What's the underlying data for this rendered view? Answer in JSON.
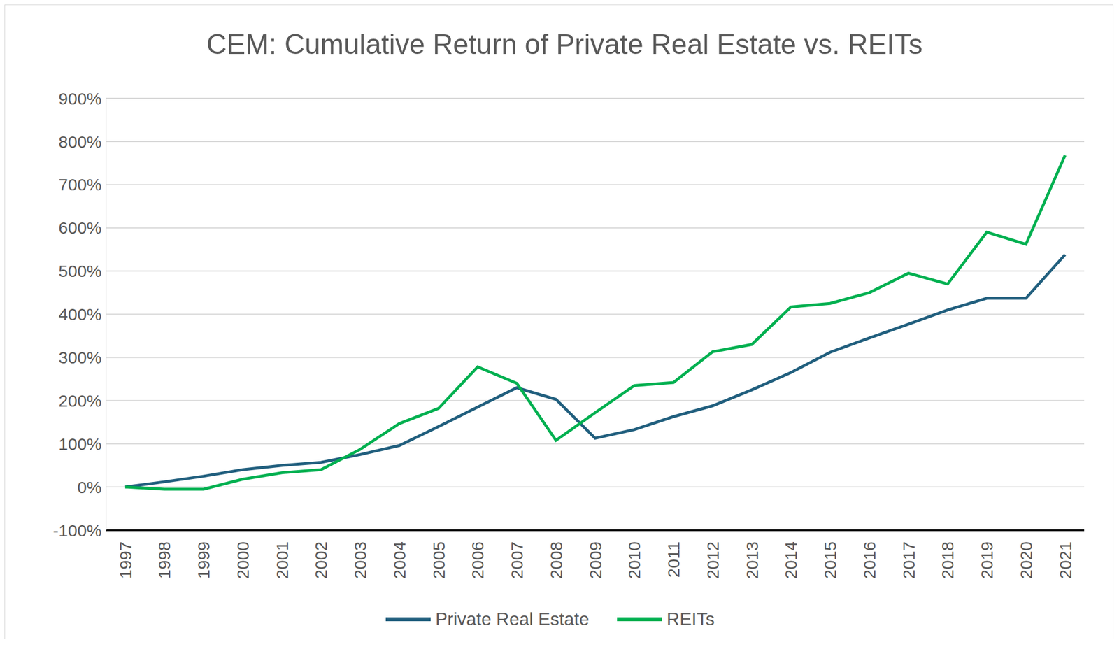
{
  "chart_data": {
    "type": "line",
    "title": "CEM: Cumulative Return of Private Real Estate vs. REITs",
    "categories": [
      "1997",
      "1998",
      "1999",
      "2000",
      "2001",
      "2002",
      "2003",
      "2004",
      "2005",
      "2006",
      "2007",
      "2008",
      "2009",
      "2010",
      "2011",
      "2012",
      "2013",
      "2014",
      "2015",
      "2016",
      "2017",
      "2018",
      "2019",
      "2020",
      "2021"
    ],
    "series": [
      {
        "name": "Private Real Estate",
        "color": "#215f7e",
        "values": [
          0,
          12,
          25,
          40,
          50,
          57,
          75,
          96,
          140,
          185,
          230,
          203,
          113,
          133,
          163,
          188,
          225,
          265,
          312,
          345,
          377,
          410,
          437,
          437,
          538
        ]
      },
      {
        "name": "REITs",
        "color": "#00b050",
        "values": [
          0,
          -5,
          -5,
          18,
          33,
          40,
          87,
          147,
          182,
          278,
          240,
          108,
          172,
          235,
          242,
          313,
          330,
          417,
          425,
          450,
          495,
          470,
          590,
          562,
          768
        ]
      }
    ],
    "ylim": [
      -100,
      900
    ],
    "yticks": [
      {
        "value": -100,
        "label": "-100%"
      },
      {
        "value": 0,
        "label": "0%"
      },
      {
        "value": 100,
        "label": "100%"
      },
      {
        "value": 200,
        "label": "200%"
      },
      {
        "value": 300,
        "label": "300%"
      },
      {
        "value": 400,
        "label": "400%"
      },
      {
        "value": 500,
        "label": "500%"
      },
      {
        "value": 600,
        "label": "600%"
      },
      {
        "value": 700,
        "label": "700%"
      },
      {
        "value": 800,
        "label": "800%"
      },
      {
        "value": 900,
        "label": "900%"
      }
    ],
    "grid": true,
    "legend": "bottom"
  }
}
